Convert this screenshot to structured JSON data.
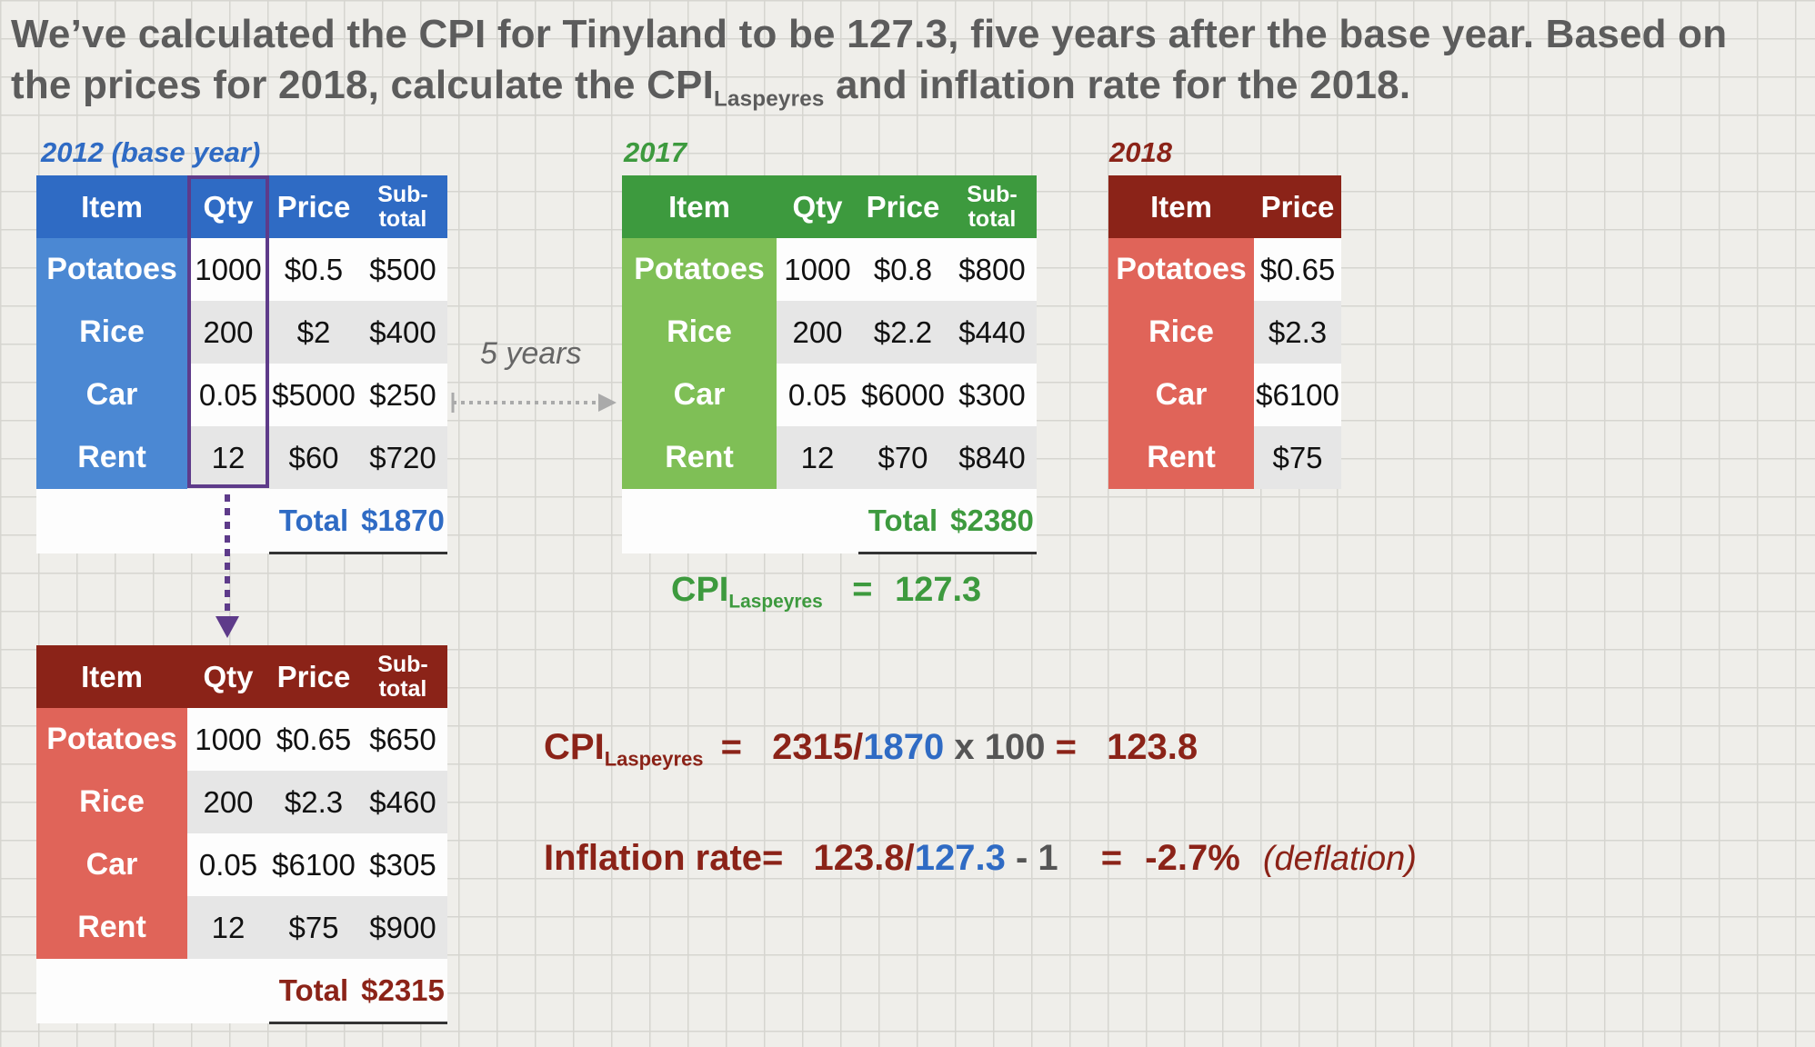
{
  "title": {
    "line1": "We’ve calculated the CPI for Tinyland to be 127.3, five years after the base year.  Based on",
    "line2a": "the prices for 2018, calculate the CPI",
    "line2sub": "Laspeyres",
    "line2b": " and inflation rate for the 2018."
  },
  "headers": {
    "item": "Item",
    "qty": "Qty",
    "price": "Price",
    "subtotal": "Sub-total",
    "total": "Total"
  },
  "colors": {
    "blue": "#2f6bc4",
    "blue_light": "#4b88d3",
    "green": "#3d9a3e",
    "green_light": "#7fbf56",
    "red": "#8b2318",
    "red_light": "#e06459",
    "purple": "#5e3b8a"
  },
  "table_2012": {
    "caption": "2012 (base year)",
    "rows": [
      {
        "item": "Potatoes",
        "qty": "1000",
        "price": "$0.5",
        "subtotal": "$500"
      },
      {
        "item": "Rice",
        "qty": "200",
        "price": "$2",
        "subtotal": "$400"
      },
      {
        "item": "Car",
        "qty": "0.05",
        "price": "$5000",
        "subtotal": "$250"
      },
      {
        "item": "Rent",
        "qty": "12",
        "price": "$60",
        "subtotal": "$720"
      }
    ],
    "total": "$1870"
  },
  "table_2017": {
    "caption": "2017",
    "rows": [
      {
        "item": "Potatoes",
        "qty": "1000",
        "price": "$0.8",
        "subtotal": "$800"
      },
      {
        "item": "Rice",
        "qty": "200",
        "price": "$2.2",
        "subtotal": "$440"
      },
      {
        "item": "Car",
        "qty": "0.05",
        "price": "$6000",
        "subtotal": "$300"
      },
      {
        "item": "Rent",
        "qty": "12",
        "price": "$70",
        "subtotal": "$840"
      }
    ],
    "total": "$2380"
  },
  "table_2018": {
    "caption": "2018",
    "rows": [
      {
        "item": "Potatoes",
        "price": "$0.65"
      },
      {
        "item": "Rice",
        "price": "$2.3"
      },
      {
        "item": "Car",
        "price": "$6100"
      },
      {
        "item": "Rent",
        "price": "$75"
      }
    ]
  },
  "table_calc": {
    "rows": [
      {
        "item": "Potatoes",
        "qty": "1000",
        "price": "$0.65",
        "subtotal": "$650"
      },
      {
        "item": "Rice",
        "qty": "200",
        "price": "$2.3",
        "subtotal": "$460"
      },
      {
        "item": "Car",
        "qty": "0.05",
        "price": "$6100",
        "subtotal": "$305"
      },
      {
        "item": "Rent",
        "qty": "12",
        "price": "$75",
        "subtotal": "$900"
      }
    ],
    "total": "$2315"
  },
  "five_years": "5 years",
  "cpi_2017": {
    "label": "CPI",
    "sub": "Laspeyres",
    "eq": "=",
    "value": "127.3"
  },
  "cpi_2018": {
    "label": "CPI",
    "sub": "Laspeyres",
    "eq": "=",
    "num": "2315",
    "slash": "/",
    "den": "1870",
    "times": " x 100 ",
    "eq2": "=",
    "result": "123.8"
  },
  "inflation": {
    "label": "Inflation rate",
    "eq": "=",
    "num": "123.8",
    "slash": "/",
    "den": "127.3",
    "minus": " - 1",
    "eq2": "=",
    "result": "-2.7%",
    "note": "(deflation)"
  }
}
